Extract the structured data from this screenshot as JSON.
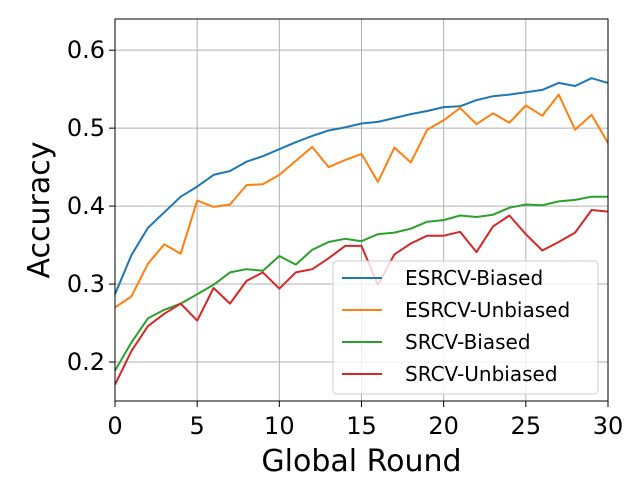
{
  "chart_data": {
    "type": "line",
    "xlabel": "Global Round",
    "ylabel": "Accuracy",
    "xlim": [
      0,
      30
    ],
    "ylim": [
      0.15,
      0.64
    ],
    "xticks": [
      0,
      5,
      10,
      15,
      20,
      25,
      30
    ],
    "yticks": [
      0.2,
      0.3,
      0.4,
      0.5,
      0.6
    ],
    "xtick_labels": [
      "0",
      "5",
      "10",
      "15",
      "20",
      "25",
      "30"
    ],
    "ytick_labels": [
      "0.2",
      "0.3",
      "0.4",
      "0.5",
      "0.6"
    ],
    "grid": true,
    "legend_position": "lower-right",
    "x": [
      0,
      1,
      2,
      3,
      4,
      5,
      6,
      7,
      8,
      9,
      10,
      11,
      12,
      13,
      14,
      15,
      16,
      17,
      18,
      19,
      20,
      21,
      22,
      23,
      24,
      25,
      26,
      27,
      28,
      29,
      30
    ],
    "series": [
      {
        "name": "ESRCV-Biased",
        "color": "#1f77b4",
        "values": [
          0.287,
          0.337,
          0.372,
          0.392,
          0.412,
          0.425,
          0.44,
          0.445,
          0.457,
          0.464,
          0.473,
          0.482,
          0.49,
          0.497,
          0.501,
          0.506,
          0.508,
          0.513,
          0.518,
          0.522,
          0.527,
          0.528,
          0.536,
          0.541,
          0.543,
          0.546,
          0.549,
          0.558,
          0.554,
          0.564,
          0.558
        ]
      },
      {
        "name": "ESRCV-Unbiased",
        "color": "#ff7f0e",
        "values": [
          0.27,
          0.284,
          0.326,
          0.351,
          0.339,
          0.407,
          0.399,
          0.402,
          0.427,
          0.428,
          0.44,
          0.458,
          0.476,
          0.45,
          0.459,
          0.467,
          0.431,
          0.475,
          0.456,
          0.498,
          0.51,
          0.526,
          0.505,
          0.519,
          0.507,
          0.529,
          0.516,
          0.543,
          0.498,
          0.517,
          0.481
        ]
      },
      {
        "name": "SRCV-Biased",
        "color": "#2ca02c",
        "values": [
          0.189,
          0.225,
          0.256,
          0.267,
          0.275,
          0.287,
          0.299,
          0.315,
          0.319,
          0.317,
          0.336,
          0.325,
          0.344,
          0.354,
          0.358,
          0.355,
          0.364,
          0.366,
          0.371,
          0.38,
          0.382,
          0.388,
          0.386,
          0.389,
          0.398,
          0.402,
          0.401,
          0.406,
          0.408,
          0.412,
          0.412
        ]
      },
      {
        "name": "SRCV-Unbiased",
        "color": "#d62728",
        "values": [
          0.171,
          0.214,
          0.246,
          0.262,
          0.275,
          0.253,
          0.295,
          0.275,
          0.304,
          0.315,
          0.294,
          0.315,
          0.319,
          0.333,
          0.349,
          0.349,
          0.299,
          0.338,
          0.352,
          0.362,
          0.362,
          0.367,
          0.341,
          0.374,
          0.388,
          0.364,
          0.343,
          0.354,
          0.366,
          0.395,
          0.393
        ]
      }
    ]
  }
}
